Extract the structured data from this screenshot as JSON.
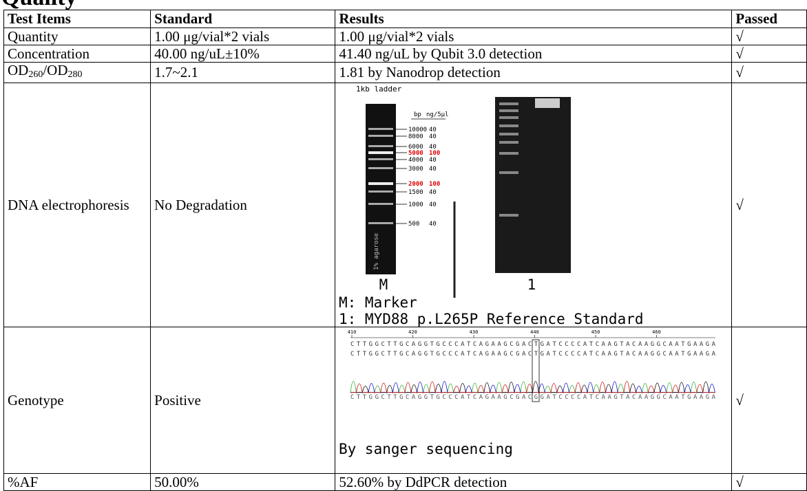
{
  "header": {
    "title": "Quality"
  },
  "table": {
    "columns": [
      "Test Items",
      "Standard",
      "Results",
      "Passed"
    ],
    "rows": [
      [
        "Quantity",
        "1.00 μg/vial*2 vials",
        "1.00 μg/vial*2 vials",
        "√"
      ],
      [
        "Concentration",
        "40.00 ng/uL±10%",
        "41.40 ng/uL by Qubit 3.0 detection",
        "√"
      ],
      [
        {
          "parts": [
            "OD",
            "260",
            "/OD",
            "280"
          ]
        },
        "1.7~2.1",
        "1.81 by Nanodrop detection",
        "√"
      ],
      [
        "DNA electrophoresis",
        "No Degradation",
        {
          "gel": {
            "title": "1kb ladder",
            "side_label": "1% agarose",
            "col_bp": "bp",
            "col_ng": "ng/5μl",
            "ladder": [
              [
                "10000",
                "40"
              ],
              [
                "8000",
                "40"
              ],
              [
                "6000",
                "40"
              ],
              [
                "5000",
                "100"
              ],
              [
                "4000",
                "40"
              ],
              [
                "3000",
                "40"
              ],
              [
                "2000",
                "100"
              ],
              [
                "1500",
                "40"
              ],
              [
                "1000",
                "40"
              ],
              [
                "500",
                "40"
              ]
            ],
            "lanes": [
              "M",
              "1"
            ]
          },
          "notes": [
            "M: Marker",
            "1: MYD88 p.L265P Reference Standard"
          ]
        },
        "√"
      ],
      [
        "Genotype",
        "Positive",
        {
          "chromatogram": {
            "positions": [
              "410",
              "420",
              "430",
              "440",
              "450",
              "460"
            ],
            "sequence": "CTTGGCTTGCAGGTGCCCATCAGAAGCGACTGATCCCCATCAAGTACAAGGCAATGAAGA",
            "sequence_call": "CTTGGCTTGCAGGTGCCCATCAGAAGCGACGGATCCCCATCAAGTACAAGGCAATGAAGA"
          },
          "note": "By sanger sequencing"
        },
        "√"
      ],
      [
        "%AF",
        "50.00%",
        "52.60% by DdPCR detection",
        "√"
      ]
    ]
  }
}
